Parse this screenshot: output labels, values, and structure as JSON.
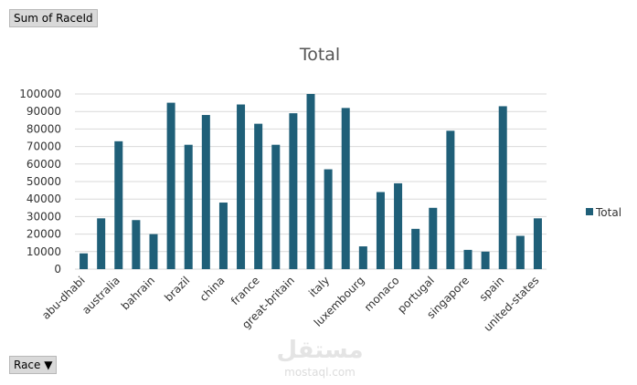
{
  "chart_data": {
    "type": "bar",
    "title": "Total",
    "field_button": "Sum of RaceId",
    "axis_button": "Race",
    "watermark": [
      "مستقل",
      "mostaql.com"
    ],
    "categories": [
      "abu-dhabi",
      null,
      "australia",
      null,
      "bahrain",
      null,
      "brazil",
      null,
      "china",
      null,
      "france",
      null,
      "great-britain",
      null,
      "italy",
      null,
      "luxembourg",
      null,
      "monaco",
      null,
      "portugal",
      null,
      "singapore",
      null,
      "spain",
      null,
      "united-states"
    ],
    "series": [
      {
        "name": "Total",
        "color": "#1f5f78",
        "values": [
          9000,
          29000,
          73000,
          28000,
          20000,
          95000,
          71000,
          88000,
          38000,
          94000,
          83000,
          71000,
          89000,
          100000,
          57000,
          92000,
          13000,
          44000,
          49000,
          23000,
          35000,
          79000,
          11000,
          10000,
          93000,
          19000,
          29000
        ]
      }
    ],
    "ylim": [
      0,
      100000
    ],
    "yticks": [
      0,
      10000,
      20000,
      30000,
      40000,
      50000,
      60000,
      70000,
      80000,
      90000,
      100000
    ],
    "grid": true,
    "legend": "right"
  }
}
